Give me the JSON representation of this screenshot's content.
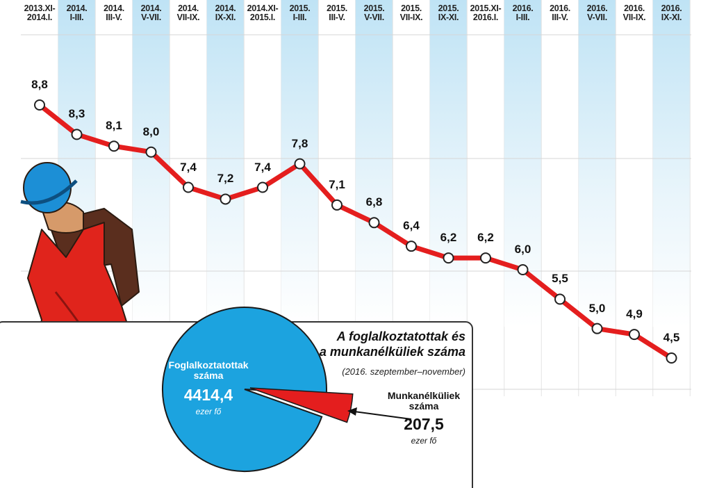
{
  "chart_data": [
    {
      "type": "line",
      "categories": [
        "2013.XI-\n2014.I.",
        "2014.\nI-III.",
        "2014.\nIII-V.",
        "2014.\nV-VII.",
        "2014.\nVII-IX.",
        "2014.\nIX-XI.",
        "2014.XI-\n2015.I.",
        "2015.\nI-III.",
        "2015.\nIII-V.",
        "2015.\nV-VII.",
        "2015.\nVII-IX.",
        "2015.\nIX-XI.",
        "2015.XI-\n2016.I.",
        "2016.\nI-III.",
        "2016.\nIII-V.",
        "2016.\nV-VII.",
        "2016.\nVII-IX.",
        "2016.\nIX-XI."
      ],
      "values": [
        8.8,
        8.3,
        8.1,
        8.0,
        7.4,
        7.2,
        7.4,
        7.8,
        7.1,
        6.8,
        6.4,
        6.2,
        6.2,
        6.0,
        5.5,
        5.0,
        4.9,
        4.5
      ],
      "value_labels": [
        "8,8",
        "8,3",
        "8,1",
        "8,0",
        "7,4",
        "7,2",
        "7,4",
        "7,8",
        "7,1",
        "6,8",
        "6,4",
        "6,2",
        "6,2",
        "6,0",
        "5,5",
        "5,0",
        "4,9",
        "4,5"
      ],
      "color": "#e41e1e"
    },
    {
      "type": "pie",
      "title": "A foglalkoztatottak és\na munkanélküliek száma",
      "subtitle": "(2016. szeptember–november)",
      "categories": [
        "Foglalkoztatottak\nszáma",
        "Munkanélküliek\nszáma"
      ],
      "values": [
        4414.4,
        207.5
      ],
      "value_labels": [
        "4414,4",
        "207,5"
      ],
      "unit": "ezer fő",
      "colors": [
        "#1ca3df",
        "#e41e1e"
      ]
    }
  ]
}
